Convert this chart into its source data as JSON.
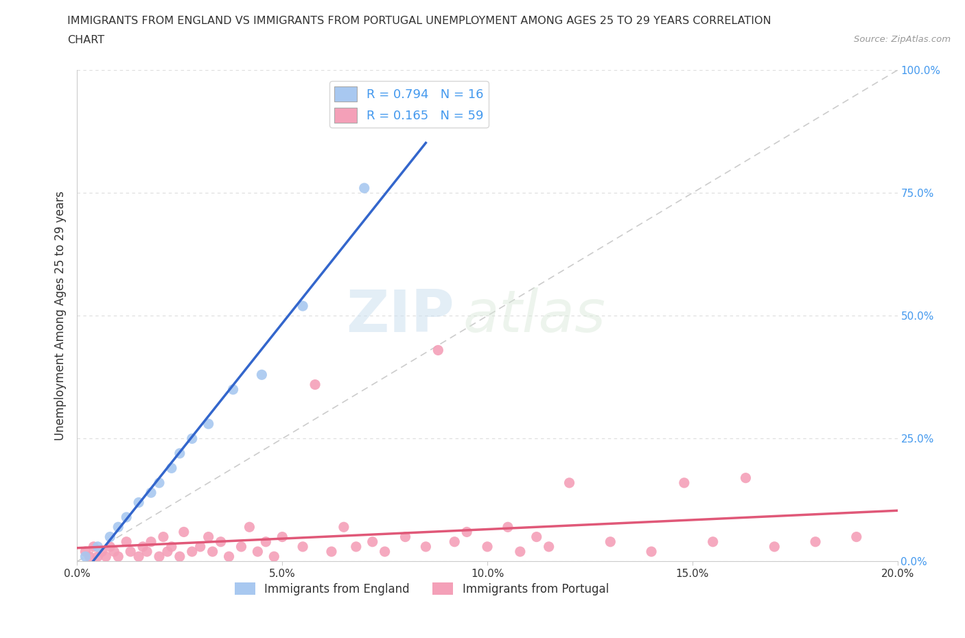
{
  "title_line1": "IMMIGRANTS FROM ENGLAND VS IMMIGRANTS FROM PORTUGAL UNEMPLOYMENT AMONG AGES 25 TO 29 YEARS CORRELATION",
  "title_line2": "CHART",
  "source": "Source: ZipAtlas.com",
  "ylabel": "Unemployment Among Ages 25 to 29 years",
  "xlabel_england": "Immigrants from England",
  "xlabel_portugal": "Immigrants from Portugal",
  "england_R": 0.794,
  "england_N": 16,
  "portugal_R": 0.165,
  "portugal_N": 59,
  "x_min": 0.0,
  "x_max": 0.2,
  "y_min": 0.0,
  "y_max": 1.0,
  "x_ticks": [
    0.0,
    0.05,
    0.1,
    0.15,
    0.2
  ],
  "x_tick_labels": [
    "0.0%",
    "5.0%",
    "10.0%",
    "15.0%",
    "20.0%"
  ],
  "y_ticks": [
    0.0,
    0.25,
    0.5,
    0.75,
    1.0
  ],
  "y_tick_labels": [
    "0.0%",
    "25.0%",
    "50.0%",
    "75.0%",
    "100.0%"
  ],
  "england_color": "#a8c8f0",
  "england_line_color": "#3366cc",
  "portugal_color": "#f4a0b8",
  "portugal_line_color": "#e05878",
  "diagonal_color": "#cccccc",
  "eng_x": [
    0.002,
    0.005,
    0.008,
    0.01,
    0.012,
    0.015,
    0.018,
    0.02,
    0.023,
    0.025,
    0.028,
    0.032,
    0.038,
    0.045,
    0.055,
    0.07
  ],
  "eng_y": [
    0.01,
    0.03,
    0.05,
    0.07,
    0.09,
    0.12,
    0.14,
    0.16,
    0.19,
    0.22,
    0.25,
    0.28,
    0.35,
    0.38,
    0.52,
    0.76
  ],
  "port_x": [
    0.002,
    0.003,
    0.004,
    0.005,
    0.006,
    0.007,
    0.008,
    0.009,
    0.01,
    0.012,
    0.013,
    0.015,
    0.016,
    0.017,
    0.018,
    0.02,
    0.021,
    0.022,
    0.023,
    0.025,
    0.026,
    0.028,
    0.03,
    0.032,
    0.033,
    0.035,
    0.037,
    0.04,
    0.042,
    0.044,
    0.046,
    0.048,
    0.05,
    0.055,
    0.058,
    0.062,
    0.065,
    0.068,
    0.072,
    0.075,
    0.08,
    0.085,
    0.088,
    0.092,
    0.095,
    0.1,
    0.105,
    0.108,
    0.112,
    0.115,
    0.12,
    0.13,
    0.14,
    0.148,
    0.155,
    0.163,
    0.17,
    0.18,
    0.19
  ],
  "port_y": [
    0.02,
    0.01,
    0.03,
    0.01,
    0.02,
    0.01,
    0.03,
    0.02,
    0.01,
    0.04,
    0.02,
    0.01,
    0.03,
    0.02,
    0.04,
    0.01,
    0.05,
    0.02,
    0.03,
    0.01,
    0.06,
    0.02,
    0.03,
    0.05,
    0.02,
    0.04,
    0.01,
    0.03,
    0.07,
    0.02,
    0.04,
    0.01,
    0.05,
    0.03,
    0.36,
    0.02,
    0.07,
    0.03,
    0.04,
    0.02,
    0.05,
    0.03,
    0.43,
    0.04,
    0.06,
    0.03,
    0.07,
    0.02,
    0.05,
    0.03,
    0.16,
    0.04,
    0.02,
    0.16,
    0.04,
    0.17,
    0.03,
    0.04,
    0.05
  ],
  "watermark_zip": "ZIP",
  "watermark_atlas": "atlas",
  "background_color": "#ffffff",
  "grid_color": "#dddddd",
  "right_tick_color": "#4499ee",
  "font_color": "#333333",
  "eng_line_x0": 0.0,
  "eng_line_x1": 0.085,
  "port_line_x0": 0.0,
  "port_line_x1": 0.2,
  "port_line_y0": 0.025,
  "port_line_y1": 0.175
}
